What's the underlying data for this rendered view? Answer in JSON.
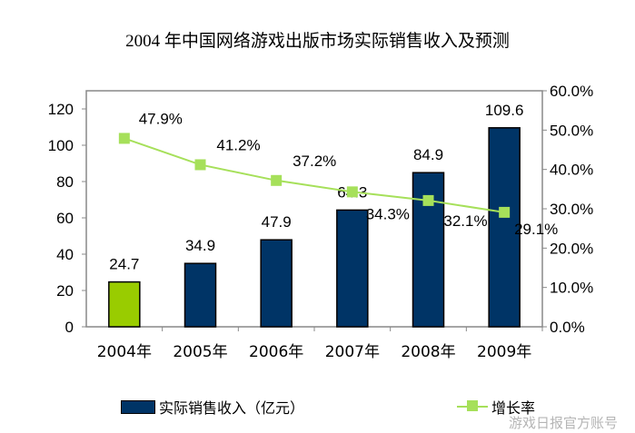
{
  "chart_data": {
    "type": "bar",
    "title": "2004 年中国网络游戏出版市场实际销售收入及预测",
    "categories": [
      "2004年",
      "2005年",
      "2006年",
      "2007年",
      "2008年",
      "2009年"
    ],
    "series": [
      {
        "name": "实际销售收入（亿元）",
        "type": "bar",
        "axis": "left",
        "values": [
          24.7,
          34.9,
          47.9,
          64.3,
          84.9,
          109.6
        ],
        "labels": [
          "24.7",
          "34.9",
          "47.9",
          "64.3",
          "84.9",
          "109.6"
        ],
        "color": "#003466",
        "highlight_color": "#99cc00"
      },
      {
        "name": "增长率",
        "type": "line",
        "axis": "right",
        "values": [
          47.9,
          41.2,
          37.2,
          34.3,
          32.1,
          29.1
        ],
        "labels": [
          "47.9%",
          "41.2%",
          "37.2%",
          "34.3%",
          "32.1%",
          "29.1%"
        ],
        "color": "#a6e05a"
      }
    ],
    "left_axis": {
      "ylim": [
        0,
        130
      ],
      "ticks": [
        "0",
        "20",
        "40",
        "60",
        "80",
        "100",
        "120"
      ]
    },
    "right_axis": {
      "ylim": [
        0,
        60
      ],
      "ticks": [
        "0.0%",
        "10.0%",
        "20.0%",
        "30.0%",
        "40.0%",
        "50.0%",
        "60.0%"
      ]
    },
    "grid": false,
    "legend": "bottom"
  },
  "watermark": "游戏日报官方账号"
}
